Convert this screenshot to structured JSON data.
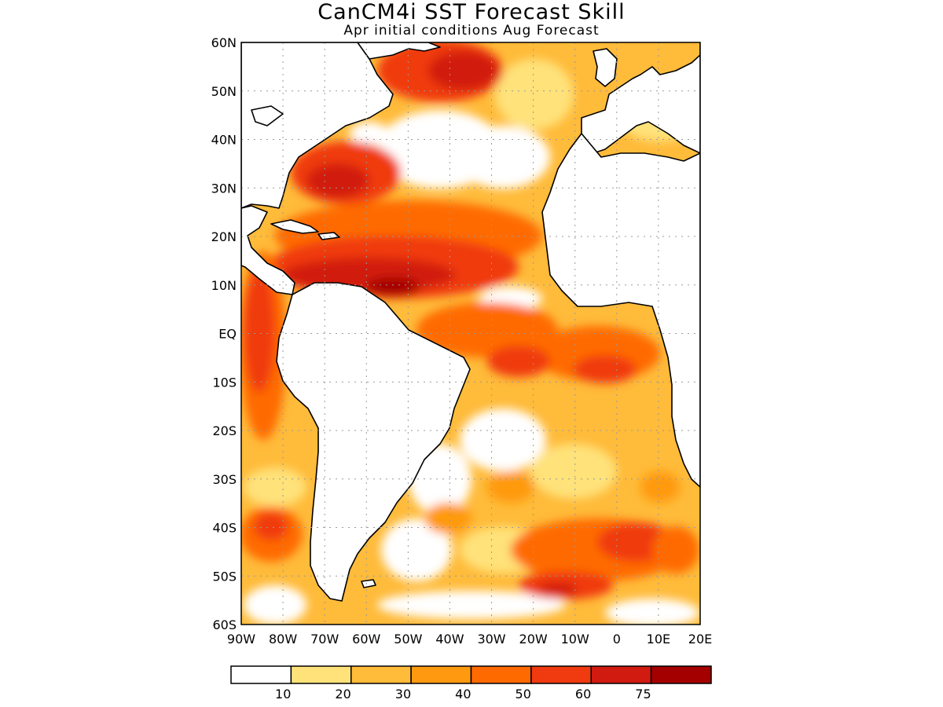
{
  "title": "CanCM4i SST Forecast Skill",
  "subtitle": "Apr initial conditions  Aug Forecast",
  "lat_labels": [
    "60N",
    "50N",
    "40N",
    "30N",
    "20N",
    "10N",
    "EQ",
    "10S",
    "20S",
    "30S",
    "40S",
    "50S",
    "60S"
  ],
  "lon_labels": [
    "90W",
    "80W",
    "70W",
    "60W",
    "50W",
    "40W",
    "30W",
    "20W",
    "10W",
    "0",
    "10E",
    "20E"
  ],
  "legend": {
    "colors": [
      "#ffffff",
      "#ffe27a",
      "#ffbb3a",
      "#ff9a10",
      "#ff6a00",
      "#f03a10",
      "#d11a10",
      "#a50000"
    ],
    "labels": [
      "10",
      "20",
      "30",
      "40",
      "50",
      "60",
      "75"
    ]
  },
  "colors": {
    "land": "#ffffff",
    "coast": "#000000",
    "grid": "#9a9a9a"
  }
}
